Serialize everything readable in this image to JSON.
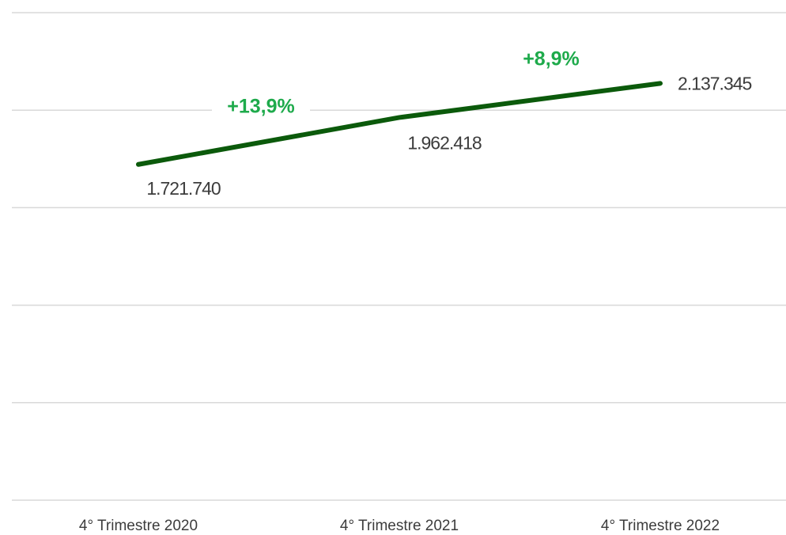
{
  "chart_data": {
    "type": "line",
    "categories": [
      "4° Trimestre 2020",
      "4° Trimestre 2021",
      "4° Trimestre 2022"
    ],
    "series": [
      {
        "color": "#0b5a0b",
        "values": [
          1721740,
          1962418,
          2137345
        ],
        "value_labels": [
          "1.721.740",
          "1.962.418",
          "2.137.345"
        ]
      }
    ],
    "annotations": [
      "+13,9%",
      "+8,9%"
    ],
    "annotation_color": "#1eaa4b",
    "ylim": [
      0,
      2500000
    ],
    "yticks": [
      0,
      500000,
      1000000,
      1500000,
      2000000,
      2500000
    ],
    "grid": true
  }
}
